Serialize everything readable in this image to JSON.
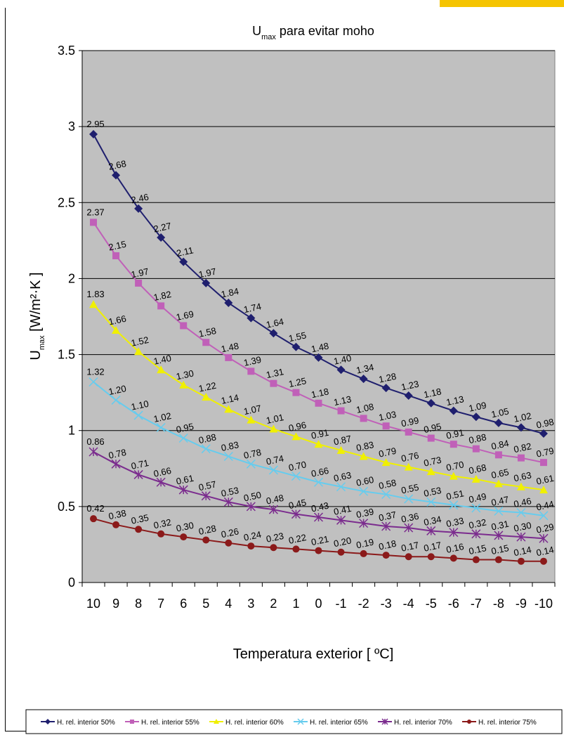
{
  "chart_data": {
    "type": "line",
    "title_main": "U",
    "title_sub": "max",
    "title_rest": " para evitar moho",
    "ylabel_main": "U",
    "ylabel_sub": "max",
    "ylabel_rest": " [W/m²·K ]",
    "xlabel": "Temperatura exterior [ ºC]",
    "ylim": [
      0,
      3.5
    ],
    "yticks": [
      "0",
      "0.5",
      "1",
      "1.5",
      "2",
      "2.5",
      "3",
      "3.5"
    ],
    "grid": true,
    "legend_position": "bottom",
    "categories": [
      "10",
      "9",
      "8",
      "7",
      "6",
      "5",
      "4",
      "3",
      "2",
      "1",
      "0",
      "-1",
      "-2",
      "-3",
      "-4",
      "-5",
      "-6",
      "-7",
      "-8",
      "-9",
      "-10"
    ],
    "series": [
      {
        "name": "H. rel. interior 50%",
        "color": "#1f1f6e",
        "marker": "diamond",
        "values": [
          2.95,
          2.68,
          2.46,
          2.27,
          2.11,
          1.97,
          1.84,
          1.74,
          1.64,
          1.55,
          1.48,
          1.4,
          1.34,
          1.28,
          1.23,
          1.18,
          1.13,
          1.09,
          1.05,
          1.02,
          0.98
        ],
        "labels": [
          "2.95",
          "2.68",
          "2.46",
          "2.27",
          "2.11",
          "1.97",
          "1.84",
          "1.74",
          "1.64",
          "1.55",
          "1.48",
          "1.40",
          "1.34",
          "1.28",
          "1.23",
          "1.18",
          "1.13",
          "1.09",
          "1.05",
          "1.02",
          "0.98"
        ]
      },
      {
        "name": "H. rel. interior 55%",
        "color": "#c060b8",
        "marker": "square",
        "values": [
          2.37,
          2.15,
          1.97,
          1.82,
          1.69,
          1.58,
          1.48,
          1.39,
          1.31,
          1.25,
          1.18,
          1.13,
          1.08,
          1.03,
          0.99,
          0.95,
          0.91,
          0.88,
          0.84,
          0.82,
          0.79
        ],
        "labels": [
          "2.37",
          "2.15",
          "1.97",
          "1.82",
          "1.69",
          "1.58",
          "1.48",
          "1.39",
          "1.31",
          "1.25",
          "1.18",
          "1.13",
          "1.08",
          "1.03",
          "0.99",
          "0.95",
          "0.91",
          "0.88",
          "0.84",
          "0.82",
          "0.79"
        ]
      },
      {
        "name": "H. rel. interior 60%",
        "color": "#f0f000",
        "marker": "triangle",
        "values": [
          1.83,
          1.66,
          1.52,
          1.4,
          1.3,
          1.22,
          1.14,
          1.07,
          1.01,
          0.96,
          0.91,
          0.87,
          0.83,
          0.79,
          0.76,
          0.73,
          0.7,
          0.68,
          0.65,
          0.63,
          0.61
        ],
        "labels": [
          "1.83",
          "1.66",
          "1.52",
          "1.40",
          "1.30",
          "1.22",
          "1.14",
          "1.07",
          "1.01",
          "0.96",
          "0.91",
          "0.87",
          "0.83",
          "0.79",
          "0.76",
          "0.73",
          "0.70",
          "0.68",
          "0.65",
          "0.63",
          "0.61"
        ]
      },
      {
        "name": "H. rel. interior 65%",
        "color": "#66ccee",
        "marker": "x",
        "values": [
          1.32,
          1.2,
          1.1,
          1.02,
          0.95,
          0.88,
          0.83,
          0.78,
          0.74,
          0.7,
          0.66,
          0.63,
          0.6,
          0.58,
          0.55,
          0.53,
          0.51,
          0.49,
          0.47,
          0.46,
          0.44
        ],
        "labels": [
          "1.32",
          "1.20",
          "1.10",
          "1.02",
          "0.95",
          "0.88",
          "0.83",
          "0.78",
          "0.74",
          "0.70",
          "0.66",
          "0.63",
          "0.60",
          "0.58",
          "0.55",
          "0.53",
          "0.51",
          "0.49",
          "0.47",
          "0.46",
          "0.44"
        ]
      },
      {
        "name": "H. rel. interior 70%",
        "color": "#7b2c8e",
        "marker": "star",
        "values": [
          0.86,
          0.78,
          0.71,
          0.66,
          0.61,
          0.57,
          0.53,
          0.5,
          0.48,
          0.45,
          0.43,
          0.41,
          0.39,
          0.37,
          0.36,
          0.34,
          0.33,
          0.32,
          0.31,
          0.3,
          0.29
        ],
        "labels": [
          "0.86",
          "0.78",
          "0.71",
          "0.66",
          "0.61",
          "0.57",
          "0.53",
          "0.50",
          "0.48",
          "0.45",
          "0.43",
          "0.41",
          "0.39",
          "0.37",
          "0.36",
          "0.34",
          "0.33",
          "0.32",
          "0.31",
          "0.30",
          "0.29"
        ]
      },
      {
        "name": "H. rel. interior 75%",
        "color": "#8b1a1a",
        "marker": "circle",
        "values": [
          0.42,
          0.38,
          0.35,
          0.32,
          0.3,
          0.28,
          0.26,
          0.24,
          0.23,
          0.22,
          0.21,
          0.2,
          0.19,
          0.18,
          0.17,
          0.17,
          0.16,
          0.15,
          0.15,
          0.14,
          0.14
        ],
        "labels": [
          "0.42",
          "0.38",
          "0.35",
          "0.32",
          "0.30",
          "0.28",
          "0.26",
          "0.24",
          "0.23",
          "0.22",
          "0.21",
          "0.20",
          "0.19",
          "0.18",
          "0.17",
          "0.17",
          "0.16",
          "0.15",
          "0.15",
          "0.14",
          "0.14"
        ]
      }
    ]
  }
}
